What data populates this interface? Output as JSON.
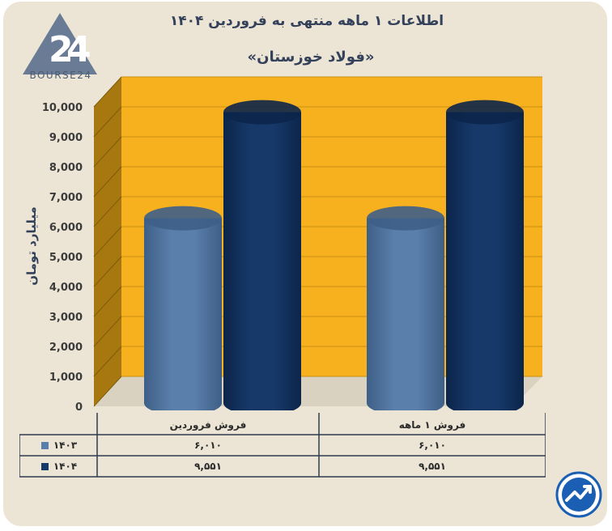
{
  "header": {
    "title": "اطلاعات ۱ ماهه منتهی به فروردین ۱۴۰۴",
    "subtitle": "«فولاد خوزستان»",
    "logo_text": "BOURSE24"
  },
  "colors": {
    "background": "#ece5d5",
    "plot_back": "#f7b11e",
    "plot_side": "#a6780f",
    "series_1403": "#5a7fab",
    "series_1404": "#16396a",
    "badge": "#1a5fb4"
  },
  "chart_data": {
    "type": "bar",
    "categories": [
      "فروش ۱ ماهه",
      "فروش فروردین"
    ],
    "series": [
      {
        "name": "۱۴۰۳",
        "values": [
          6010,
          6010
        ]
      },
      {
        "name": "۱۴۰۴",
        "values": [
          9551,
          9551
        ]
      }
    ],
    "ylabel": "میلیارد تومان",
    "ylim": [
      0,
      10000
    ],
    "yticks": [
      0,
      1000,
      2000,
      3000,
      4000,
      5000,
      6000,
      7000,
      8000,
      9000,
      10000
    ],
    "ytick_labels": [
      "0",
      "1,000",
      "2,000",
      "3,000",
      "4,000",
      "5,000",
      "6,000",
      "7,000",
      "8,000",
      "9,000",
      "10,000"
    ],
    "legend": "bottom-table",
    "grid": true
  },
  "table": {
    "headers": [
      "فروش ۱ ماهه",
      "فروش فروردین"
    ],
    "rows": [
      {
        "label": "۱۴۰۳",
        "cells": [
          "۶,۰۱۰",
          "۶,۰۱۰"
        ]
      },
      {
        "label": "۱۴۰۴",
        "cells": [
          "۹,۵۵۱",
          "۹,۵۵۱"
        ]
      }
    ]
  },
  "badge_icon": "trend-arrow-icon",
  "logo_icon": "bourse24-logo-icon"
}
